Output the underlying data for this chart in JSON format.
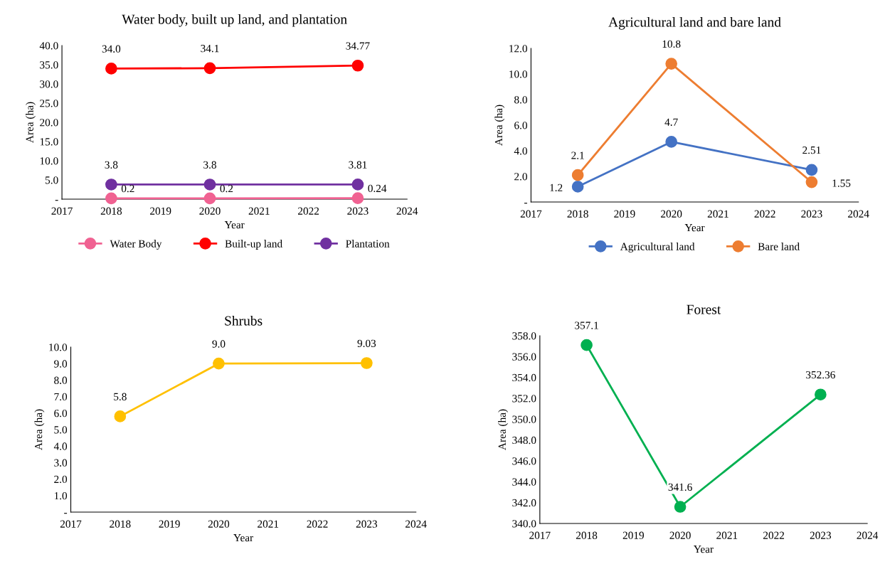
{
  "chart_data": [
    {
      "type": "line",
      "title": "Water body, built up land, and plantation",
      "xlabel": "Year",
      "ylabel": "Area (ha)",
      "x": [
        2018,
        2020,
        2023
      ],
      "xlim": [
        2017,
        2024
      ],
      "xticks": [
        2017,
        2018,
        2019,
        2020,
        2021,
        2022,
        2023,
        2024
      ],
      "ylim": [
        0,
        40
      ],
      "yticks": [
        {
          "value": 0,
          "label": "-"
        },
        {
          "value": 5,
          "label": "5.0"
        },
        {
          "value": 10,
          "label": "10.0"
        },
        {
          "value": 15,
          "label": "15.0"
        },
        {
          "value": 20,
          "label": "20.0"
        },
        {
          "value": 25,
          "label": "25.0"
        },
        {
          "value": 30,
          "label": "30.0"
        },
        {
          "value": 35,
          "label": "35.0"
        },
        {
          "value": 40,
          "label": "40.0"
        }
      ],
      "marker": "circle",
      "grid": false,
      "legend": "bottom",
      "series": [
        {
          "name": "Water Body",
          "color": "#f06292",
          "values": [
            0.2,
            0.2,
            0.24
          ],
          "value_labels": [
            "0.2",
            "0.2",
            "0.24"
          ]
        },
        {
          "name": "Built-up land",
          "color": "#ff0000",
          "values": [
            34.0,
            34.1,
            34.77
          ],
          "value_labels": [
            "34.0",
            "34.1",
            "34.77"
          ]
        },
        {
          "name": "Plantation",
          "color": "#7030a0",
          "values": [
            3.8,
            3.8,
            3.81
          ],
          "value_labels": [
            "3.8",
            "3.8",
            "3.81"
          ]
        }
      ]
    },
    {
      "type": "line",
      "title": "Agricultural land and bare land",
      "xlabel": "Year",
      "ylabel": "Area (ha)",
      "x": [
        2018,
        2020,
        2023
      ],
      "xlim": [
        2017,
        2024
      ],
      "xticks": [
        2017,
        2018,
        2019,
        2020,
        2021,
        2022,
        2023,
        2024
      ],
      "ylim": [
        0,
        12
      ],
      "yticks": [
        {
          "value": 0,
          "label": "-"
        },
        {
          "value": 2,
          "label": "2.0"
        },
        {
          "value": 4,
          "label": "4.0"
        },
        {
          "value": 6,
          "label": "6.0"
        },
        {
          "value": 8,
          "label": "8.0"
        },
        {
          "value": 10,
          "label": "10.0"
        },
        {
          "value": 12,
          "label": "12.0"
        }
      ],
      "marker": "circle",
      "grid": false,
      "legend": "bottom",
      "series": [
        {
          "name": "Agricultural land",
          "color": "#4472c4",
          "values": [
            1.2,
            4.7,
            2.51
          ],
          "value_labels": [
            "1.2",
            "4.7",
            "2.51"
          ]
        },
        {
          "name": "Bare land",
          "color": "#ed7d31",
          "values": [
            2.1,
            10.8,
            1.55
          ],
          "value_labels": [
            "2.1",
            "10.8",
            "1.55"
          ]
        }
      ]
    },
    {
      "type": "line",
      "title": "Shrubs",
      "xlabel": "Year",
      "ylabel": "Area (ha)",
      "x": [
        2018,
        2020,
        2023
      ],
      "xlim": [
        2017,
        2024
      ],
      "xticks": [
        2017,
        2018,
        2019,
        2020,
        2021,
        2022,
        2023,
        2024
      ],
      "ylim": [
        0,
        10
      ],
      "yticks": [
        {
          "value": 0,
          "label": "-"
        },
        {
          "value": 1,
          "label": "1.0"
        },
        {
          "value": 2,
          "label": "2.0"
        },
        {
          "value": 3,
          "label": "3.0"
        },
        {
          "value": 4,
          "label": "4.0"
        },
        {
          "value": 5,
          "label": "5.0"
        },
        {
          "value": 6,
          "label": "6.0"
        },
        {
          "value": 7,
          "label": "7.0"
        },
        {
          "value": 8,
          "label": "8.0"
        },
        {
          "value": 9,
          "label": "9.0"
        },
        {
          "value": 10,
          "label": "10.0"
        }
      ],
      "marker": "circle",
      "grid": false,
      "legend": false,
      "series": [
        {
          "color": "#ffc000",
          "values": [
            5.8,
            9.0,
            9.03
          ],
          "value_labels": [
            "5.8",
            "9.0",
            "9.03"
          ]
        }
      ]
    },
    {
      "type": "line",
      "title": "Forest",
      "xlabel": "Year",
      "ylabel": "Area (ha)",
      "x": [
        2018,
        2020,
        2023
      ],
      "xlim": [
        2017,
        2024
      ],
      "xticks": [
        2017,
        2018,
        2019,
        2020,
        2021,
        2022,
        2023,
        2024
      ],
      "ylim": [
        340,
        358
      ],
      "yticks": [
        {
          "value": 340,
          "label": "340.0"
        },
        {
          "value": 342,
          "label": "342.0"
        },
        {
          "value": 344,
          "label": "344.0"
        },
        {
          "value": 346,
          "label": "346.0"
        },
        {
          "value": 348,
          "label": "348.0"
        },
        {
          "value": 350,
          "label": "350.0"
        },
        {
          "value": 352,
          "label": "352.0"
        },
        {
          "value": 354,
          "label": "354.0"
        },
        {
          "value": 356,
          "label": "356.0"
        },
        {
          "value": 358,
          "label": "358.0"
        }
      ],
      "marker": "circle",
      "grid": false,
      "legend": false,
      "series": [
        {
          "color": "#00b050",
          "values": [
            357.1,
            341.6,
            352.36
          ],
          "value_labels": [
            "357.1",
            "341.6",
            "352.36"
          ]
        }
      ]
    }
  ]
}
